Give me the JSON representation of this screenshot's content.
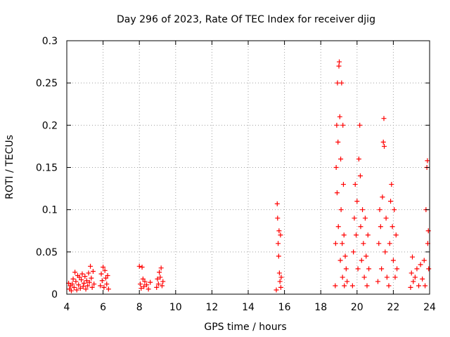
{
  "chart_data": {
    "type": "scatter",
    "title": "Day 296 of 2023, Rate Of TEC Index for receiver djig",
    "xlabel": "GPS time / hours",
    "ylabel": "ROTI / TECUs",
    "xlim": [
      4,
      24
    ],
    "ylim": [
      0,
      0.3
    ],
    "x_ticks": [
      "4",
      "6",
      "8",
      "10",
      "12",
      "14",
      "16",
      "18",
      "20",
      "22",
      "24"
    ],
    "y_ticks": [
      "0",
      "0.05",
      "0.1",
      "0.15",
      "0.2",
      "0.25",
      "0.3"
    ],
    "grid": true,
    "marker": "+",
    "color": "#ff0000",
    "series": [
      {
        "name": "ROTI",
        "points": [
          [
            4.1,
            0.013
          ],
          [
            4.15,
            0.006
          ],
          [
            4.2,
            0.01
          ],
          [
            4.25,
            0.004
          ],
          [
            4.3,
            0.012
          ],
          [
            4.35,
            0.018
          ],
          [
            4.4,
            0.008
          ],
          [
            4.45,
            0.026
          ],
          [
            4.5,
            0.015
          ],
          [
            4.55,
            0.005
          ],
          [
            4.6,
            0.022
          ],
          [
            4.65,
            0.011
          ],
          [
            4.7,
            0.02
          ],
          [
            4.75,
            0.007
          ],
          [
            4.8,
            0.017
          ],
          [
            4.85,
            0.024
          ],
          [
            4.9,
            0.009
          ],
          [
            4.95,
            0.013
          ],
          [
            5.0,
            0.021
          ],
          [
            5.05,
            0.006
          ],
          [
            5.1,
            0.016
          ],
          [
            5.15,
            0.01
          ],
          [
            5.2,
            0.025
          ],
          [
            5.25,
            0.014
          ],
          [
            5.3,
            0.033
          ],
          [
            5.35,
            0.019
          ],
          [
            5.4,
            0.008
          ],
          [
            5.45,
            0.027
          ],
          [
            5.5,
            0.012
          ],
          [
            5.85,
            0.01
          ],
          [
            5.9,
            0.024
          ],
          [
            5.95,
            0.016
          ],
          [
            6.0,
            0.032
          ],
          [
            6.05,
            0.008
          ],
          [
            6.1,
            0.028
          ],
          [
            6.15,
            0.019
          ],
          [
            6.2,
            0.012
          ],
          [
            6.25,
            0.022
          ],
          [
            6.3,
            0.006
          ],
          [
            8.0,
            0.033
          ],
          [
            8.05,
            0.012
          ],
          [
            8.1,
            0.007
          ],
          [
            8.15,
            0.032
          ],
          [
            8.2,
            0.018
          ],
          [
            8.25,
            0.009
          ],
          [
            8.3,
            0.015
          ],
          [
            8.4,
            0.011
          ],
          [
            8.5,
            0.006
          ],
          [
            8.6,
            0.014
          ],
          [
            8.95,
            0.008
          ],
          [
            9.0,
            0.018
          ],
          [
            9.05,
            0.012
          ],
          [
            9.1,
            0.026
          ],
          [
            9.15,
            0.02
          ],
          [
            9.2,
            0.031
          ],
          [
            9.25,
            0.01
          ],
          [
            9.3,
            0.015
          ],
          [
            15.55,
            0.005
          ],
          [
            15.6,
            0.107
          ],
          [
            15.62,
            0.09
          ],
          [
            15.65,
            0.06
          ],
          [
            15.68,
            0.045
          ],
          [
            15.7,
            0.075
          ],
          [
            15.72,
            0.025
          ],
          [
            15.75,
            0.015
          ],
          [
            15.78,
            0.07
          ],
          [
            15.8,
            0.008
          ],
          [
            15.82,
            0.02
          ],
          [
            18.8,
            0.01
          ],
          [
            18.82,
            0.06
          ],
          [
            18.85,
            0.15
          ],
          [
            18.88,
            0.2
          ],
          [
            18.9,
            0.12
          ],
          [
            18.92,
            0.25
          ],
          [
            18.95,
            0.18
          ],
          [
            18.97,
            0.08
          ],
          [
            19.0,
            0.27
          ],
          [
            19.02,
            0.275
          ],
          [
            19.05,
            0.21
          ],
          [
            19.08,
            0.04
          ],
          [
            19.1,
            0.16
          ],
          [
            19.12,
            0.1
          ],
          [
            19.15,
            0.25
          ],
          [
            19.18,
            0.06
          ],
          [
            19.2,
            0.02
          ],
          [
            19.22,
            0.2
          ],
          [
            19.25,
            0.13
          ],
          [
            19.28,
            0.07
          ],
          [
            19.3,
            0.01
          ],
          [
            19.35,
            0.045
          ],
          [
            19.4,
            0.03
          ],
          [
            19.45,
            0.015
          ],
          [
            19.75,
            0.01
          ],
          [
            19.8,
            0.05
          ],
          [
            19.85,
            0.09
          ],
          [
            19.9,
            0.13
          ],
          [
            19.95,
            0.07
          ],
          [
            20.0,
            0.11
          ],
          [
            20.05,
            0.03
          ],
          [
            20.1,
            0.16
          ],
          [
            20.15,
            0.2
          ],
          [
            20.18,
            0.14
          ],
          [
            20.2,
            0.08
          ],
          [
            20.25,
            0.04
          ],
          [
            20.3,
            0.1
          ],
          [
            20.35,
            0.06
          ],
          [
            20.4,
            0.02
          ],
          [
            20.45,
            0.09
          ],
          [
            20.5,
            0.045
          ],
          [
            20.55,
            0.01
          ],
          [
            20.6,
            0.07
          ],
          [
            20.65,
            0.03
          ],
          [
            21.15,
            0.015
          ],
          [
            21.2,
            0.06
          ],
          [
            21.25,
            0.1
          ],
          [
            21.3,
            0.08
          ],
          [
            21.35,
            0.03
          ],
          [
            21.4,
            0.115
          ],
          [
            21.45,
            0.18
          ],
          [
            21.48,
            0.208
          ],
          [
            21.5,
            0.175
          ],
          [
            21.55,
            0.05
          ],
          [
            21.6,
            0.09
          ],
          [
            21.65,
            0.02
          ],
          [
            21.75,
            0.01
          ],
          [
            21.8,
            0.06
          ],
          [
            21.85,
            0.11
          ],
          [
            21.9,
            0.13
          ],
          [
            21.95,
            0.08
          ],
          [
            22.0,
            0.04
          ],
          [
            22.05,
            0.1
          ],
          [
            22.1,
            0.02
          ],
          [
            22.15,
            0.07
          ],
          [
            22.2,
            0.03
          ],
          [
            22.95,
            0.008
          ],
          [
            23.0,
            0.025
          ],
          [
            23.05,
            0.044
          ],
          [
            23.1,
            0.015
          ],
          [
            23.2,
            0.02
          ],
          [
            23.3,
            0.03
          ],
          [
            23.4,
            0.01
          ],
          [
            23.5,
            0.035
          ],
          [
            23.6,
            0.018
          ],
          [
            23.7,
            0.04
          ],
          [
            23.75,
            0.01
          ],
          [
            23.8,
            0.1
          ],
          [
            23.85,
            0.15
          ],
          [
            23.88,
            0.158
          ],
          [
            23.9,
            0.06
          ],
          [
            23.93,
            0.075
          ],
          [
            23.95,
            0.03
          ]
        ]
      }
    ]
  }
}
